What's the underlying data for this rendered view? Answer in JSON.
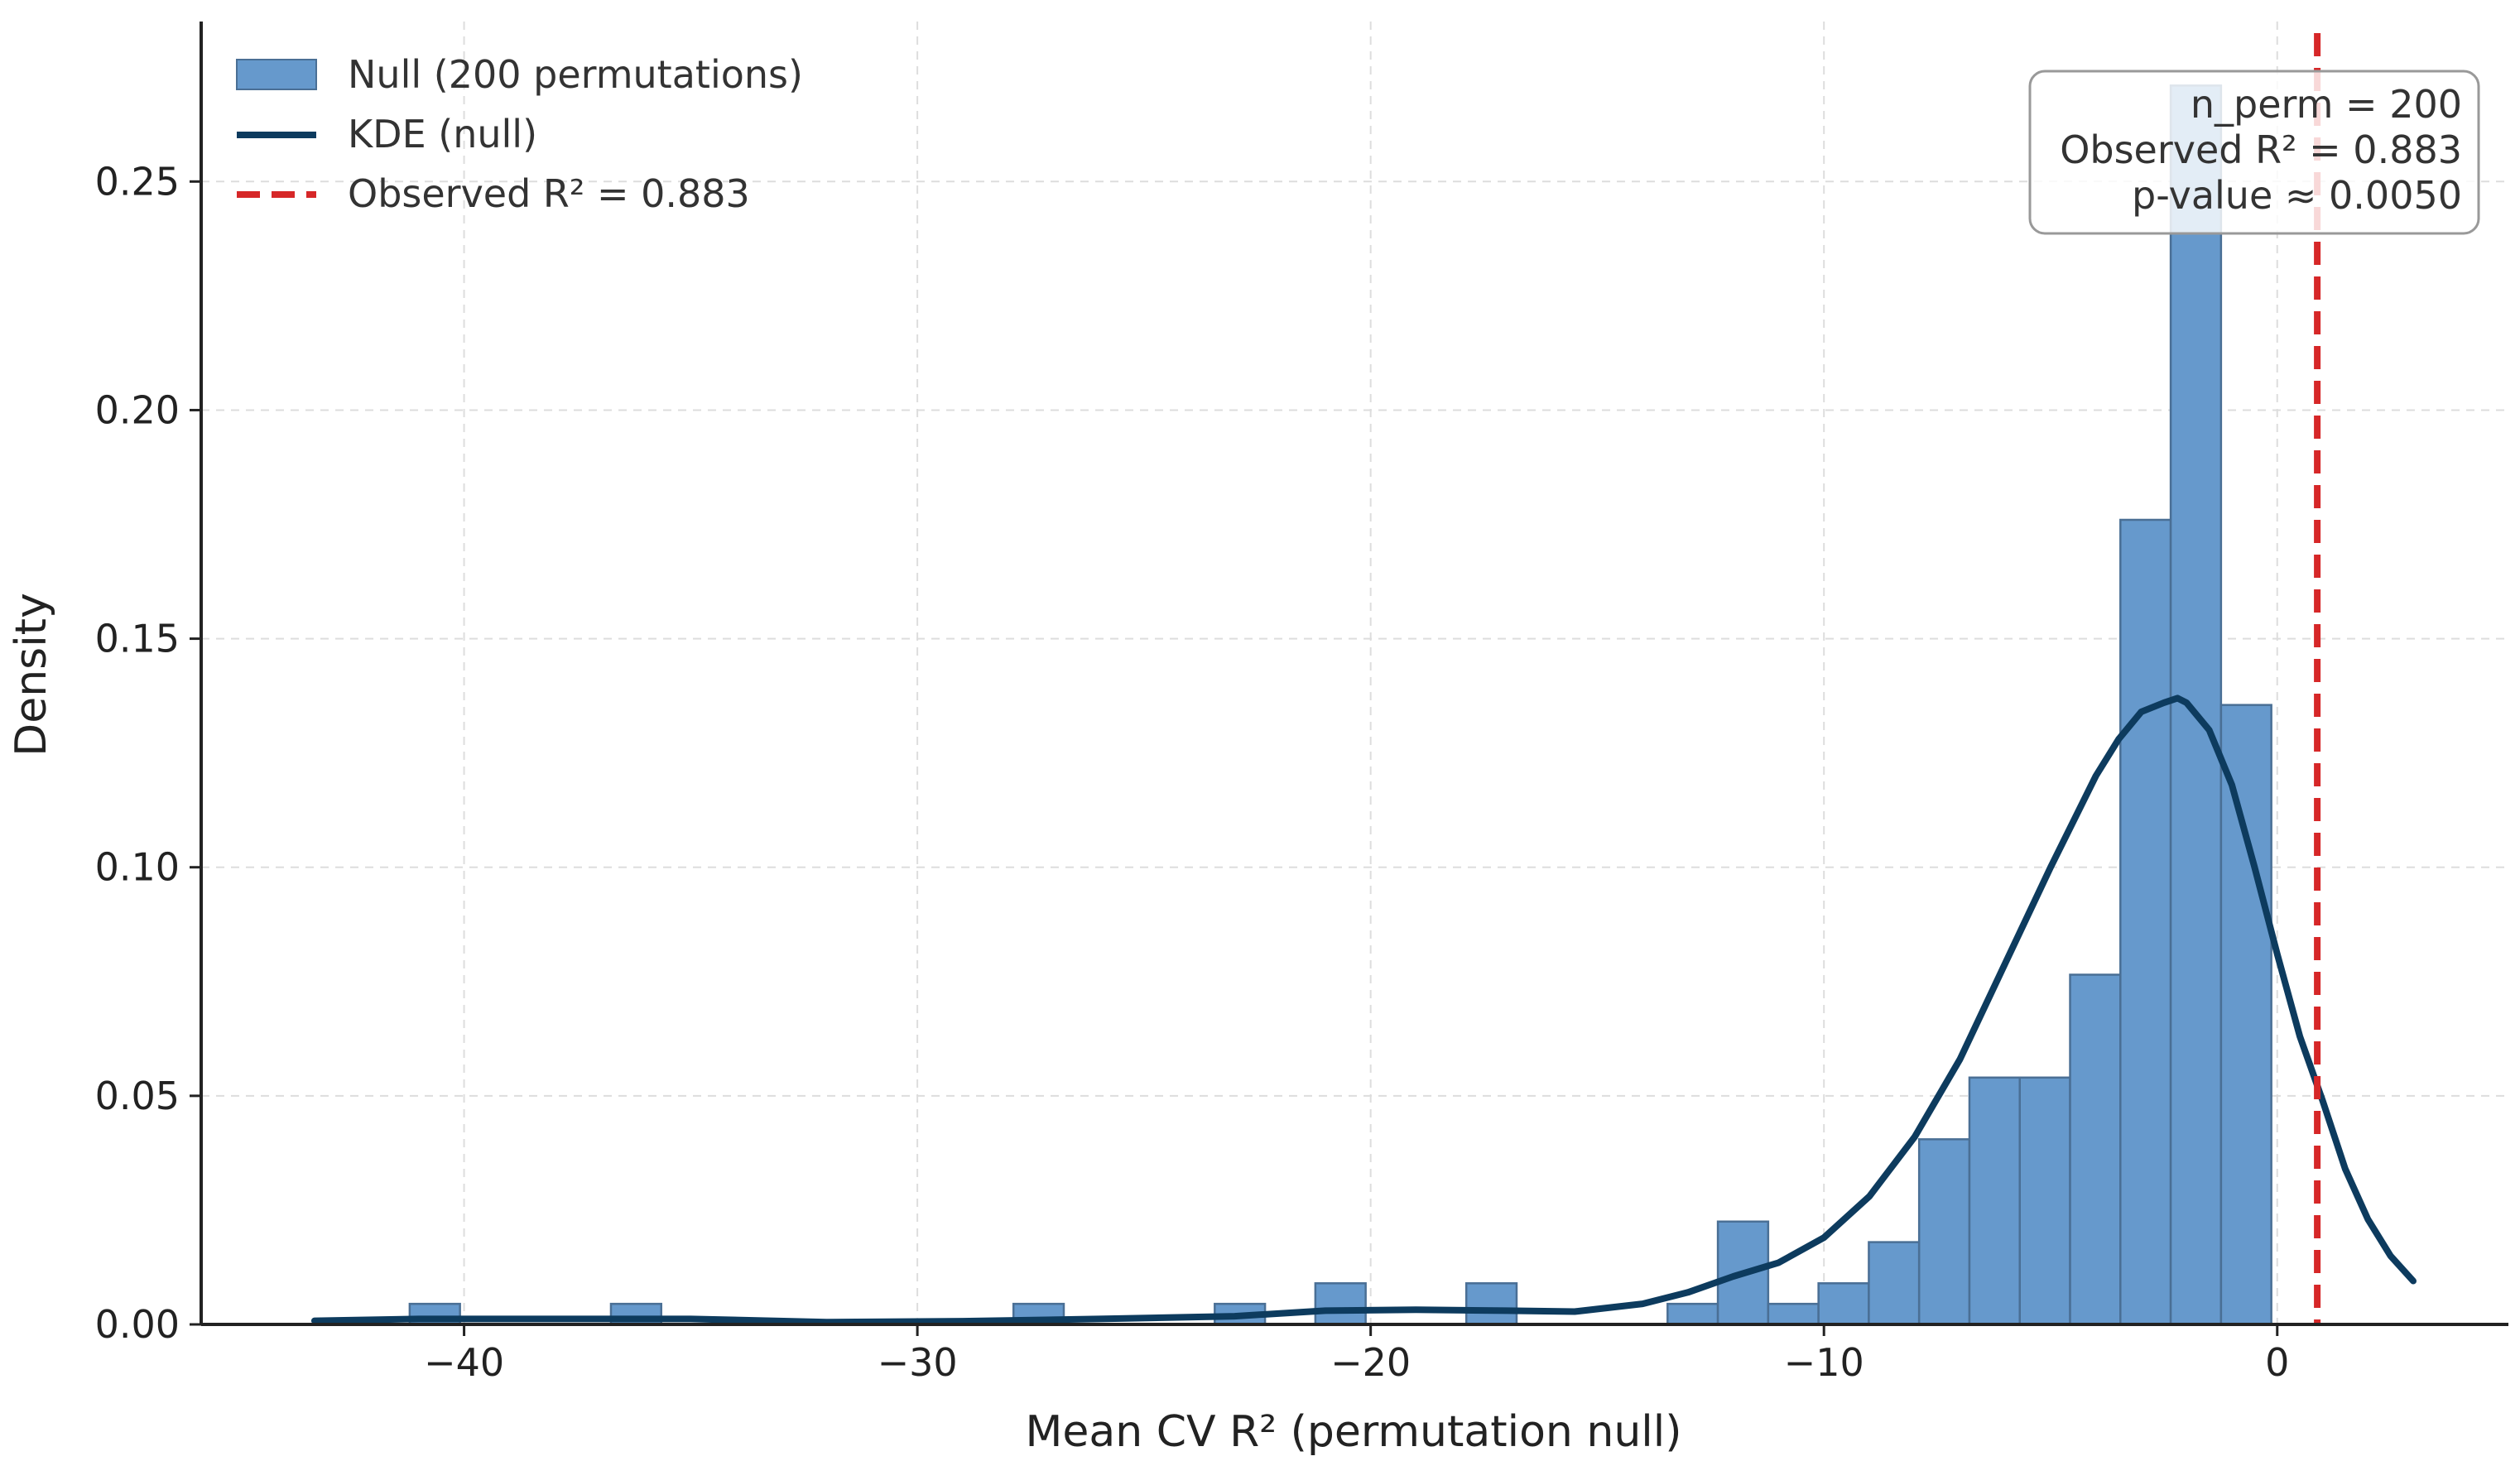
{
  "chart_data": {
    "type": "bar",
    "xlabel": "Mean CV R² (permutation null)",
    "ylabel": "Density",
    "xlim": [
      -45.8,
      5.1
    ],
    "ylim": [
      0,
      0.285
    ],
    "xticks": [
      -40,
      -30,
      -20,
      -10,
      0
    ],
    "xtick_labels": [
      "−40",
      "−30",
      "−20",
      "−10",
      "0"
    ],
    "yticks": [
      0,
      0.05,
      0.1,
      0.15,
      0.2,
      0.25
    ],
    "ytick_labels": [
      "0.00",
      "0.05",
      "0.10",
      "0.15",
      "0.20",
      "0.25"
    ],
    "grid": true,
    "legend_position": "top-left",
    "colors": {
      "bars": "#6699cc",
      "bar_edge": "#4a6f95",
      "kde": "#0d3b5e",
      "observed": "#d62728"
    },
    "series": [
      {
        "name": "Null (200 permutations)",
        "type": "histogram",
        "bin_width": 1.11,
        "bins": [
          {
            "x0": -41.2,
            "x1": -40.09,
            "density": 0.0045
          },
          {
            "x0": -36.76,
            "x1": -35.65,
            "density": 0.0045
          },
          {
            "x0": -27.88,
            "x1": -26.77,
            "density": 0.0045
          },
          {
            "x0": -23.44,
            "x1": -22.33,
            "density": 0.0045
          },
          {
            "x0": -21.22,
            "x1": -20.11,
            "density": 0.009
          },
          {
            "x0": -17.89,
            "x1": -16.78,
            "density": 0.009
          },
          {
            "x0": -13.45,
            "x1": -12.34,
            "density": 0.0045
          },
          {
            "x0": -12.34,
            "x1": -11.23,
            "density": 0.0225
          },
          {
            "x0": -11.23,
            "x1": -10.12,
            "density": 0.0045
          },
          {
            "x0": -10.12,
            "x1": -9.01,
            "density": 0.009
          },
          {
            "x0": -9.01,
            "x1": -7.9,
            "density": 0.018
          },
          {
            "x0": -7.9,
            "x1": -6.79,
            "density": 0.0405
          },
          {
            "x0": -6.79,
            "x1": -5.68,
            "density": 0.054
          },
          {
            "x0": -5.68,
            "x1": -4.57,
            "density": 0.054
          },
          {
            "x0": -4.57,
            "x1": -3.46,
            "density": 0.0765
          },
          {
            "x0": -3.46,
            "x1": -2.35,
            "density": 0.176
          },
          {
            "x0": -2.35,
            "x1": -1.24,
            "density": 0.271
          },
          {
            "x0": -1.24,
            "x1": -0.13,
            "density": 0.1355
          }
        ]
      },
      {
        "name": "KDE (null)",
        "type": "line",
        "x": [
          -43.3,
          -41.0,
          -38.0,
          -35.0,
          -32.0,
          -29.0,
          -26.0,
          -23.0,
          -21.0,
          -19.0,
          -17.0,
          -15.5,
          -14.0,
          -13.0,
          -12.0,
          -11.0,
          -10.0,
          -9.0,
          -8.0,
          -7.0,
          -6.0,
          -5.0,
          -4.0,
          -3.5,
          -3.0,
          -2.5,
          -2.2,
          -2.0,
          -1.5,
          -1.0,
          -0.5,
          0.0,
          0.5,
          1.0,
          1.5,
          2.0,
          2.5,
          3.0
        ],
        "y": [
          0.0008,
          0.0012,
          0.0012,
          0.0012,
          0.0005,
          0.0007,
          0.0012,
          0.0018,
          0.003,
          0.0032,
          0.003,
          0.0028,
          0.0045,
          0.007,
          0.0105,
          0.0135,
          0.019,
          0.028,
          0.041,
          0.058,
          0.079,
          0.1,
          0.12,
          0.128,
          0.134,
          0.136,
          0.137,
          0.136,
          0.13,
          0.118,
          0.1,
          0.081,
          0.063,
          0.049,
          0.034,
          0.023,
          0.015,
          0.0095
        ]
      },
      {
        "name": "Observed R² = 0.883",
        "type": "vline",
        "x": 0.883
      }
    ],
    "annotation": {
      "lines": [
        "n_perm = 200",
        "Observed R² = 0.883",
        "p-value ≈ 0.0050"
      ],
      "position": "top-right"
    }
  }
}
